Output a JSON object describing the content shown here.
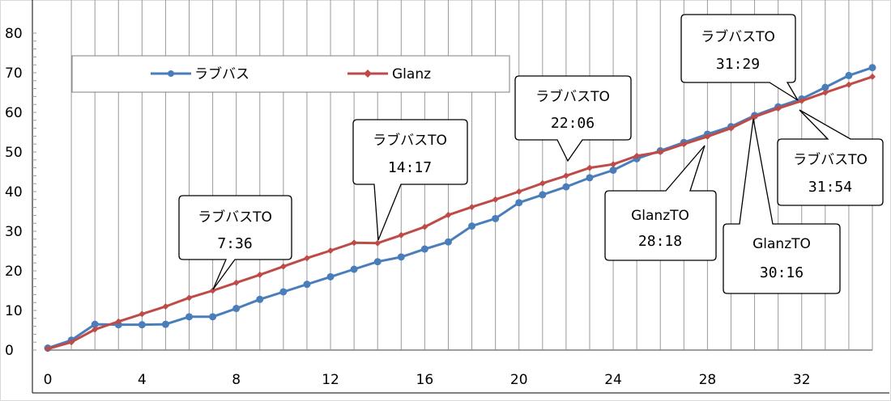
{
  "chart_data": {
    "type": "line",
    "xlim": [
      0,
      35
    ],
    "ylim": [
      0,
      80
    ],
    "x_ticks": [
      0,
      4,
      8,
      12,
      16,
      20,
      24,
      28,
      32
    ],
    "y_ticks": [
      0,
      10,
      20,
      30,
      40,
      50,
      60,
      70,
      80
    ],
    "grid": "vertical",
    "legend_position": "top-left",
    "series": [
      {
        "name": "ラブバス",
        "color": "#4a7ebb",
        "marker": "circle",
        "x": [
          0,
          1,
          2,
          3,
          4,
          5,
          6,
          7,
          8,
          9,
          10,
          11,
          12,
          13,
          14,
          15,
          16,
          17,
          18,
          19,
          20,
          21,
          22,
          23,
          24,
          25,
          26,
          27,
          28,
          29,
          30,
          31,
          32,
          33,
          34,
          35
        ],
        "values": [
          0.5,
          2.5,
          6.5,
          6.4,
          6.4,
          6.5,
          8.4,
          8.4,
          10.5,
          12.8,
          14.7,
          16.6,
          18.5,
          20.4,
          22.3,
          23.5,
          25.5,
          27.3,
          31.3,
          33.2,
          37.2,
          39.2,
          41.2,
          43.5,
          45.4,
          48.3,
          50.3,
          52.4,
          54.5,
          56.4,
          59.2,
          61.4,
          63.4,
          66.3,
          69.3,
          71.3
        ]
      },
      {
        "name": "Glanz",
        "color": "#be4b48",
        "marker": "diamond",
        "x": [
          0,
          1,
          2,
          3,
          4,
          5,
          6,
          7,
          8,
          9,
          10,
          11,
          12,
          13,
          14,
          15,
          16,
          17,
          18,
          19,
          20,
          21,
          22,
          23,
          24,
          25,
          26,
          27,
          28,
          29,
          30,
          31,
          32,
          33,
          34,
          35
        ],
        "values": [
          0.3,
          2.0,
          5.2,
          7.2,
          9.1,
          11.0,
          13.2,
          15.0,
          17.0,
          19.0,
          21.1,
          23.2,
          25.1,
          27.1,
          27.0,
          29.0,
          31.1,
          34.1,
          36.1,
          38.0,
          40.0,
          42.1,
          44.0,
          46.0,
          46.9,
          49.0,
          50.0,
          52.0,
          53.9,
          56.0,
          58.9,
          61.0,
          62.9,
          65.0,
          67.0,
          69.0
        ]
      }
    ],
    "annotations": [
      {
        "label": "ラブバスTO",
        "time": "7:36",
        "x": 7,
        "y": 15
      },
      {
        "label": "ラブバスTO",
        "time": "14:17",
        "x": 14,
        "y": 27
      },
      {
        "label": "ラブバスTO",
        "time": "22:06",
        "x": 22.5,
        "y": 45
      },
      {
        "label": "GlanzTO",
        "time": "28:18",
        "x": 28.5,
        "y": 55
      },
      {
        "label": "GlanzTO",
        "time": "30:16",
        "x": 30,
        "y": 59
      },
      {
        "label": "ラブバスTO",
        "time": "31:29",
        "x": 31.5,
        "y": 62.5
      },
      {
        "label": "ラブバスTO",
        "time": "31:54",
        "x": 32,
        "y": 63
      }
    ]
  }
}
